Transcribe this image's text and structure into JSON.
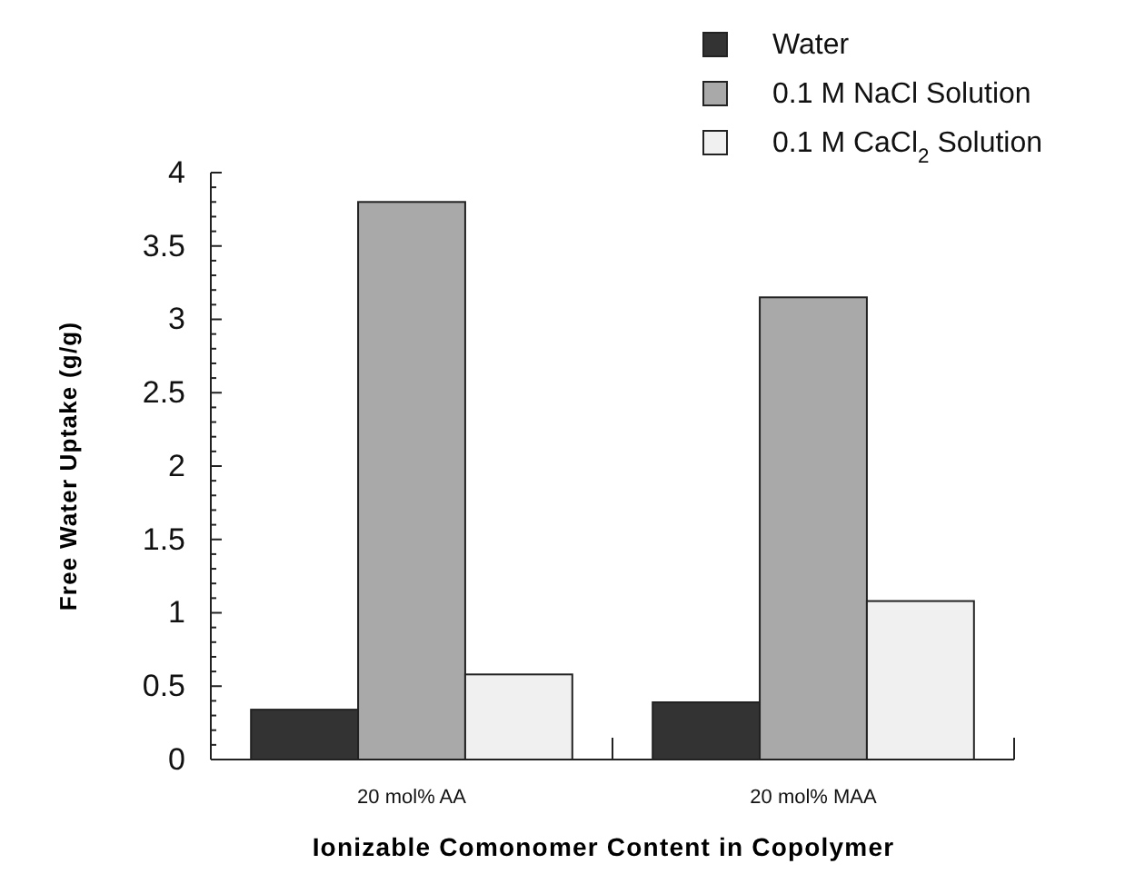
{
  "chart_data": {
    "type": "bar",
    "xlabel": "Ionizable Comonomer Content in Copolymer",
    "ylabel": "Free Water Uptake (g/g)",
    "categories": [
      "20 mol% AA",
      "20 mol% MAA"
    ],
    "series": [
      {
        "name": "Water",
        "color": "#333333",
        "values": [
          0.34,
          0.39
        ]
      },
      {
        "name": "0.1 M NaCl Solution",
        "color": "#a9a9a9",
        "values": [
          3.8,
          3.15
        ]
      },
      {
        "name": "0.1 M CaCl$_{2}$ Solution",
        "color": "#f0f0f0",
        "values": [
          0.58,
          1.08
        ]
      }
    ],
    "ylim": [
      0,
      4
    ],
    "yticks": [
      0,
      {
        "value": 0.1,
        "label": null
      },
      {
        "value": 0.2,
        "label": null
      },
      {
        "value": 0.3,
        "label": null
      },
      {
        "value": 0.4,
        "label": null
      },
      0.5,
      {
        "value": 0.6,
        "label": null
      },
      {
        "value": 0.7,
        "label": null
      },
      {
        "value": 0.8,
        "label": null
      },
      {
        "value": 0.9,
        "label": null
      },
      1,
      {
        "value": 1.1,
        "label": null
      },
      {
        "value": 1.2,
        "label": null
      },
      {
        "value": 1.3,
        "label": null
      },
      {
        "value": 1.4,
        "label": null
      },
      1.5,
      {
        "value": 1.6,
        "label": null
      },
      {
        "value": 1.7,
        "label": null
      },
      {
        "value": 1.8,
        "label": null
      },
      {
        "value": 1.9,
        "label": null
      },
      2,
      {
        "value": 2.1,
        "label": null
      },
      {
        "value": 2.2,
        "label": null
      },
      {
        "value": 2.3,
        "label": null
      },
      {
        "value": 2.4,
        "label": null
      },
      2.5,
      {
        "value": 2.6,
        "label": null
      },
      {
        "value": 2.7,
        "label": null
      },
      {
        "value": 2.8,
        "label": null
      },
      {
        "value": 2.9,
        "label": null
      },
      3,
      {
        "value": 3.1,
        "label": null
      },
      {
        "value": 3.2,
        "label": null
      },
      {
        "value": 3.3,
        "label": null
      },
      {
        "value": 3.4,
        "label": null
      },
      3.5,
      {
        "value": 3.6,
        "label": null
      },
      {
        "value": 3.7,
        "label": null
      },
      {
        "value": 3.8,
        "label": null
      },
      {
        "value": 3.9,
        "label": null
      },
      4
    ],
    "grid": false,
    "legend": "top right"
  }
}
